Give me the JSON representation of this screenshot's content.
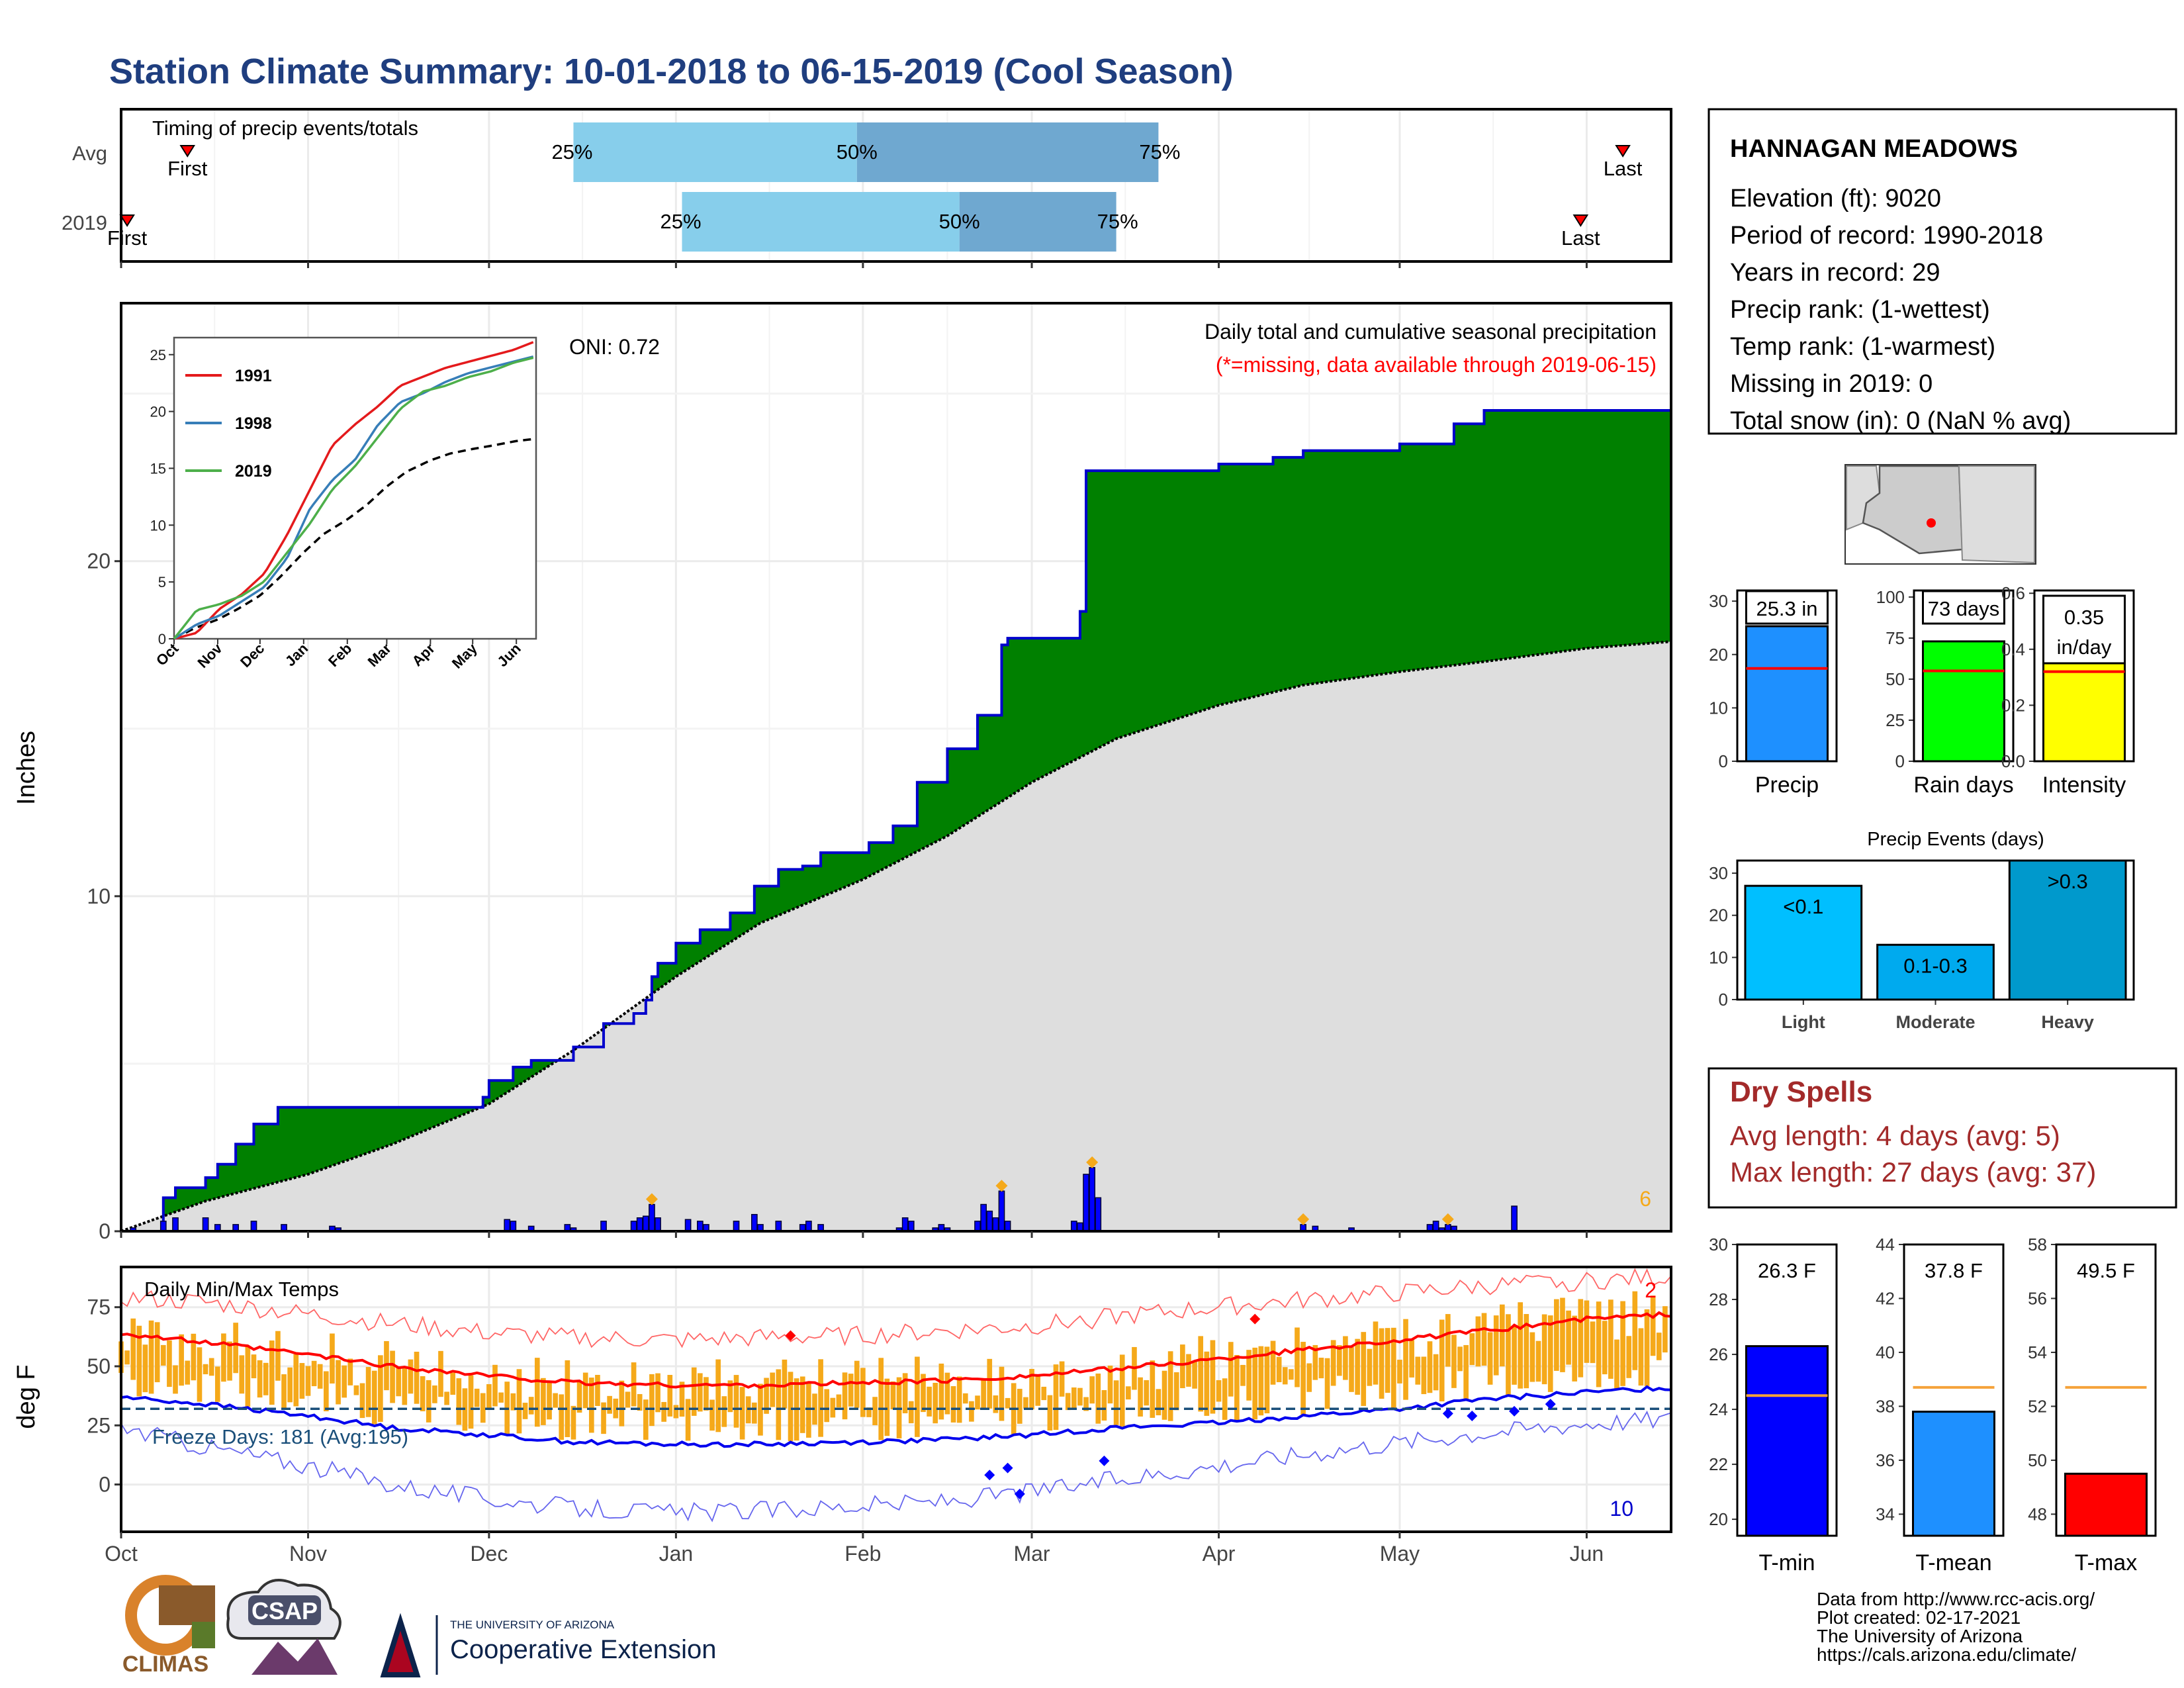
{
  "title": "Station Climate Summary: 10-01-2018 to 06-15-2019 (Cool Season)",
  "colors": {
    "title": "#1f3e7f",
    "cum_2019": "#008000",
    "avg_fill": "#dedede",
    "outline": "#0000cc",
    "daily_bar": "#0000ff",
    "temp_bar": "#f5a91a",
    "tmax_line": "#ff0000",
    "tmin_line": "#0000ee",
    "freeze_line": "#1a4f7a",
    "dry_spells": "#a32a2a",
    "missing_note": "#ff0000"
  },
  "timing_panel": {
    "title": "Timing of precip events/totals",
    "rows": [
      {
        "label": "Avg",
        "first_label": "First",
        "last_label": "Last",
        "first_date": "2018-10-12",
        "last_date": "2019-06-07",
        "p25_date": "2018-12-15",
        "p50_date": "2019-01-31",
        "p75_date": "2019-03-22",
        "p25": "25%",
        "p50": "50%",
        "p75": "75%"
      },
      {
        "label": "2019",
        "first_label": "First",
        "last_label": "Last",
        "first_date": "2018-10-02",
        "last_date": "2019-05-31",
        "p25_date": "2019-01-02",
        "p50_date": "2019-02-17",
        "p75_date": "2019-03-15",
        "p25": "25%",
        "p50": "50%",
        "p75": "75%"
      }
    ]
  },
  "precip_panel": {
    "ylabel": "Inches",
    "yticks": [
      0,
      10,
      20
    ],
    "ylim": [
      0,
      27.7
    ],
    "note_title": "Daily total and cumulative seasonal precipitation",
    "note_missing": "(*=missing, data available through 2019-06-15)",
    "oni": "ONI: 0.72",
    "corner_count": "6"
  },
  "temp_panel": {
    "title": "Daily Min/Max Temps",
    "ylabel": "deg F",
    "yticks": [
      0,
      25,
      50,
      75
    ],
    "ylim": [
      -20,
      92
    ],
    "freeze_label": "Freeze Days: 181 (Avg:195)",
    "freeze_level": 32,
    "max_count": "2",
    "min_count": "10"
  },
  "x_axis": {
    "start": "2018-10-01",
    "end": "2019-06-15",
    "ticks": [
      {
        "label": "Oct",
        "date": "2018-10-01"
      },
      {
        "label": "Nov",
        "date": "2018-11-01"
      },
      {
        "label": "Dec",
        "date": "2018-12-01"
      },
      {
        "label": "Jan",
        "date": "2019-01-01"
      },
      {
        "label": "Feb",
        "date": "2019-02-01"
      },
      {
        "label": "Mar",
        "date": "2019-03-01"
      },
      {
        "label": "Apr",
        "date": "2019-04-01"
      },
      {
        "label": "May",
        "date": "2019-05-01"
      },
      {
        "label": "Jun",
        "date": "2019-06-01"
      }
    ]
  },
  "inset": {
    "yticks": [
      0,
      5,
      10,
      15,
      20,
      25
    ],
    "xticks": [
      "Oct",
      "Nov",
      "Dec",
      "Jan",
      "Feb",
      "Mar",
      "Apr",
      "May",
      "Jun"
    ],
    "legend": [
      {
        "name": "1991",
        "color": "#e41a1c"
      },
      {
        "name": "1998",
        "color": "#377eb8"
      },
      {
        "name": "2019",
        "color": "#4daf4a"
      }
    ]
  },
  "station": {
    "name": "HANNAGAN MEADOWS",
    "lines": [
      "Elevation (ft): 9020",
      "Period of record: 1990-2018",
      "Years in record: 29",
      "Precip rank:  (1-wettest)",
      "Temp rank:  (1-warmest)",
      "Missing in 2019: 0",
      "Total snow (in): 0 (NaN % avg)"
    ]
  },
  "small_bars": [
    {
      "label": "Precip",
      "value": 25.3,
      "value_label": "25.3 in",
      "avg": 17.4,
      "ymax": 32,
      "yticks": [
        0,
        10,
        20,
        30
      ],
      "color": "#1e90ff"
    },
    {
      "label": "Rain days",
      "value": 73,
      "value_label": "73 days",
      "avg": 55,
      "ymax": 104,
      "yticks": [
        0,
        25,
        50,
        75,
        100
      ],
      "color": "#00ff00"
    },
    {
      "label": "Intensity",
      "value": 0.35,
      "value_label": "0.35 in/day",
      "avg": 0.32,
      "ymax": 0.61,
      "yticks": [
        0.0,
        0.2,
        0.4,
        0.6
      ],
      "color": "#ffff00"
    }
  ],
  "precip_events": {
    "title": "Precip Events (days)",
    "yticks": [
      0,
      10,
      20,
      30
    ],
    "ymax": 33,
    "bars": [
      {
        "category": "Light",
        "label": "<0.1",
        "value": 27,
        "color": "#00bfff"
      },
      {
        "category": "Moderate",
        "label": "0.1-0.3",
        "value": 13,
        "color": "#00aaee"
      },
      {
        "category": "Heavy",
        "label": ">0.3",
        "value": 33,
        "color": "#0099cc"
      }
    ]
  },
  "dry_spells": {
    "title": "Dry Spells",
    "avg_line": "Avg length: 4 days (avg: 5)",
    "max_line": "Max length: 27 days (avg: 37)"
  },
  "temp_bars": [
    {
      "label": "T-min",
      "value": 26.3,
      "value_label": "26.3 F",
      "avg": 24.5,
      "ymin": 19.4,
      "ymax": 30,
      "yticks": [
        20,
        22,
        24,
        26,
        28,
        30
      ],
      "color": "#0000ff"
    },
    {
      "label": "T-mean",
      "value": 37.8,
      "value_label": "37.8 F",
      "avg": 38.7,
      "ymin": 33.2,
      "ymax": 44,
      "yticks": [
        34,
        36,
        38,
        40,
        42,
        44
      ],
      "color": "#1e90ff"
    },
    {
      "label": "T-max",
      "value": 49.5,
      "value_label": "49.5 F",
      "avg": 52.7,
      "ymin": 47.2,
      "ymax": 58,
      "yticks": [
        48,
        50,
        52,
        54,
        56,
        58
      ],
      "color": "#ff0000"
    }
  ],
  "footer_lines": [
    "Data from http://www.rcc-acis.org/",
    "Plot created: 02-17-2021",
    "The University of Arizona",
    "https://cals.arizona.edu/climate/"
  ],
  "logos": {
    "climas": "CLIMAS",
    "csap": "CSAP",
    "ua_small": "THE UNIVERSITY OF ARIZONA",
    "ua_big": "Cooperative Extension"
  },
  "chart_data": [
    {
      "type": "area",
      "title": "Daily total and cumulative seasonal precipitation",
      "ylabel": "Inches",
      "ylim": [
        0,
        27.7
      ],
      "x_range": [
        "2018-10-01",
        "2019-06-15"
      ],
      "series": [
        {
          "name": "2019 cumulative",
          "x": [
            "2018-10-01",
            "2018-10-08",
            "2018-10-10",
            "2018-10-15",
            "2018-10-17",
            "2018-10-20",
            "2018-10-23",
            "2018-10-27",
            "2018-11-15",
            "2018-11-30",
            "2018-12-01",
            "2018-12-05",
            "2018-12-08",
            "2018-12-15",
            "2018-12-20",
            "2018-12-25",
            "2018-12-27",
            "2018-12-28",
            "2018-12-29",
            "2019-01-01",
            "2019-01-05",
            "2019-01-10",
            "2019-01-14",
            "2019-01-18",
            "2019-01-22",
            "2019-01-25",
            "2019-02-02",
            "2019-02-06",
            "2019-02-10",
            "2019-02-15",
            "2019-02-20",
            "2019-02-24",
            "2019-02-25",
            "2019-03-05",
            "2019-03-09",
            "2019-03-10",
            "2019-04-01",
            "2019-04-10",
            "2019-04-15",
            "2019-05-01",
            "2019-05-10",
            "2019-05-15",
            "2019-06-15"
          ],
          "values": [
            0,
            1,
            1.3,
            1.6,
            2,
            2.6,
            3.2,
            3.7,
            3.7,
            4,
            4.5,
            4.9,
            5.1,
            5.5,
            6.2,
            6.5,
            6.9,
            7.6,
            8,
            8.6,
            9,
            9.5,
            10.3,
            10.8,
            10.9,
            11.3,
            11.6,
            12.1,
            13.4,
            14.4,
            15.4,
            17.5,
            17.7,
            17.7,
            18.5,
            22.7,
            22.9,
            23.1,
            23.3,
            23.5,
            24.1,
            24.5,
            25.3
          ]
        },
        {
          "name": "Average cumulative",
          "x": [
            "2018-10-01",
            "2018-10-15",
            "2018-11-01",
            "2018-11-15",
            "2018-12-01",
            "2018-12-15",
            "2019-01-01",
            "2019-01-15",
            "2019-02-01",
            "2019-02-15",
            "2019-03-01",
            "2019-03-15",
            "2019-04-01",
            "2019-04-15",
            "2019-05-01",
            "2019-05-15",
            "2019-06-01",
            "2019-06-15"
          ],
          "values": [
            0,
            0.9,
            1.7,
            2.6,
            3.8,
            5.4,
            7.6,
            9.2,
            10.5,
            11.8,
            13.4,
            14.7,
            15.7,
            16.3,
            16.7,
            17.0,
            17.4,
            17.6
          ]
        },
        {
          "name": "Daily precip",
          "x": [
            "2018-10-03",
            "2018-10-08",
            "2018-10-10",
            "2018-10-15",
            "2018-10-17",
            "2018-10-20",
            "2018-10-23",
            "2018-10-28",
            "2018-11-05",
            "2018-11-06",
            "2018-12-04",
            "2018-12-05",
            "2018-12-08",
            "2018-12-14",
            "2018-12-15",
            "2018-12-20",
            "2018-12-25",
            "2018-12-26",
            "2018-12-27",
            "2018-12-28",
            "2018-12-29",
            "2019-01-03",
            "2019-01-05",
            "2019-01-06",
            "2019-01-11",
            "2019-01-14",
            "2019-01-15",
            "2019-01-18",
            "2019-01-22",
            "2019-01-23",
            "2019-01-25",
            "2019-02-07",
            "2019-02-08",
            "2019-02-09",
            "2019-02-13",
            "2019-02-14",
            "2019-02-15",
            "2019-02-20",
            "2019-02-21",
            "2019-02-22",
            "2019-02-23",
            "2019-02-24",
            "2019-02-25",
            "2019-03-08",
            "2019-03-09",
            "2019-03-10",
            "2019-03-11",
            "2019-03-12",
            "2019-04-15",
            "2019-04-17",
            "2019-04-23",
            "2019-05-06",
            "2019-05-07",
            "2019-05-08",
            "2019-05-09",
            "2019-05-10",
            "2019-05-20"
          ],
          "values": [
            0.1,
            0.3,
            0.4,
            0.4,
            0.2,
            0.2,
            0.3,
            0.2,
            0.15,
            0.1,
            0.35,
            0.3,
            0.15,
            0.2,
            0.1,
            0.3,
            0.3,
            0.4,
            0.45,
            0.8,
            0.4,
            0.35,
            0.3,
            0.2,
            0.3,
            0.5,
            0.2,
            0.3,
            0.2,
            0.3,
            0.2,
            0.1,
            0.4,
            0.3,
            0.1,
            0.2,
            0.1,
            0.3,
            0.8,
            0.6,
            0.4,
            1.2,
            0.3,
            0.3,
            0.25,
            1.7,
            1.9,
            1.0,
            0.2,
            0.15,
            0.1,
            0.2,
            0.3,
            0.1,
            0.2,
            0.15,
            0.75
          ]
        }
      ]
    },
    {
      "type": "line",
      "title": "Daily Min/Max Temps",
      "ylabel": "deg F",
      "ylim": [
        -20,
        92
      ],
      "x_range": [
        "2018-10-01",
        "2019-06-15"
      ],
      "series": [
        {
          "name": "Tmax average",
          "x": [
            "2018-10-01",
            "2018-10-15",
            "2018-11-01",
            "2018-11-15",
            "2018-12-01",
            "2018-12-15",
            "2019-01-01",
            "2019-01-15",
            "2019-02-01",
            "2019-02-15",
            "2019-03-01",
            "2019-03-15",
            "2019-04-01",
            "2019-04-15",
            "2019-05-01",
            "2019-05-15",
            "2019-06-01",
            "2019-06-15"
          ],
          "values": [
            64,
            60,
            55,
            50,
            46,
            43,
            42,
            42,
            43,
            44,
            46,
            49,
            53,
            57,
            61,
            65,
            70,
            72
          ]
        },
        {
          "name": "Tmin average",
          "x": [
            "2018-10-01",
            "2018-10-15",
            "2018-11-01",
            "2018-11-15",
            "2018-12-01",
            "2018-12-15",
            "2019-01-01",
            "2019-01-15",
            "2019-02-01",
            "2019-02-15",
            "2019-03-01",
            "2019-03-15",
            "2019-04-01",
            "2019-04-15",
            "2019-05-01",
            "2019-05-15",
            "2019-06-01",
            "2019-06-15"
          ],
          "values": [
            37,
            34,
            29,
            24,
            21,
            18,
            17,
            17,
            18,
            19,
            21,
            24,
            26,
            29,
            32,
            36,
            39,
            41
          ]
        },
        {
          "name": "Record max",
          "x": [
            "2018-10-01",
            "2018-10-15",
            "2018-11-01",
            "2018-11-15",
            "2018-12-01",
            "2018-12-15",
            "2019-01-01",
            "2019-01-15",
            "2019-02-01",
            "2019-02-15",
            "2019-03-01",
            "2019-03-15",
            "2019-04-01",
            "2019-04-15",
            "2019-05-01",
            "2019-05-15",
            "2019-06-01",
            "2019-06-15"
          ],
          "values": [
            79,
            77,
            72,
            68,
            64,
            62,
            61,
            62,
            63,
            65,
            67,
            71,
            75,
            78,
            81,
            84,
            86,
            88
          ]
        },
        {
          "name": "Record min",
          "x": [
            "2018-10-01",
            "2018-10-15",
            "2018-11-01",
            "2018-11-15",
            "2018-12-01",
            "2018-12-15",
            "2019-01-01",
            "2019-01-15",
            "2019-02-01",
            "2019-02-15",
            "2019-03-01",
            "2019-03-15",
            "2019-04-01",
            "2019-04-15",
            "2019-05-01",
            "2019-05-15",
            "2019-06-01",
            "2019-06-15"
          ],
          "values": [
            24,
            16,
            8,
            0,
            -6,
            -10,
            -12,
            -11,
            -9,
            -7,
            -3,
            2,
            8,
            13,
            18,
            22,
            26,
            28
          ]
        }
      ]
    },
    {
      "type": "bar",
      "title": "Precip Events (days)",
      "categories": [
        "Light",
        "Moderate",
        "Heavy"
      ],
      "values": [
        27,
        13,
        33
      ]
    },
    {
      "type": "bar",
      "categories": [
        "Precip",
        "Rain days",
        "Intensity"
      ],
      "values": [
        25.3,
        73,
        0.35
      ]
    },
    {
      "type": "bar",
      "categories": [
        "T-min",
        "T-mean",
        "T-max"
      ],
      "values": [
        26.3,
        37.8,
        49.5
      ]
    }
  ]
}
